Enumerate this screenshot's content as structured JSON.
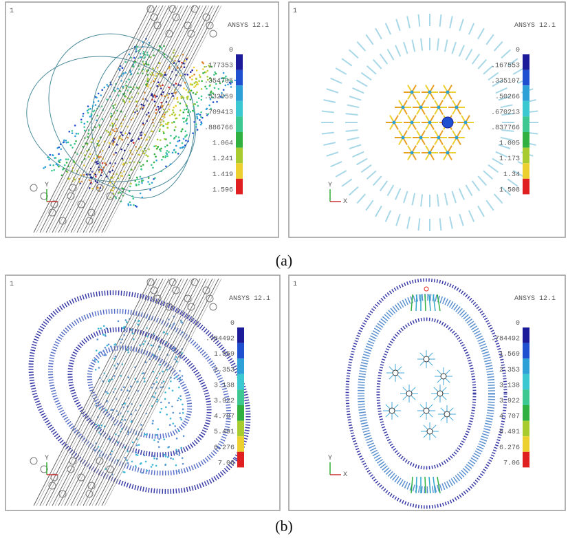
{
  "panels": [
    {
      "number": "1",
      "title": "ANSYS 12.1",
      "legend": [
        "0",
        ".177353",
        ".354706",
        ".532059",
        ".709413",
        ".886766",
        "1.064",
        "1.241",
        "1.419",
        "1.596"
      ],
      "axes": [
        "Y"
      ]
    },
    {
      "number": "1",
      "title": "ANSYS 12.1",
      "legend": [
        "0",
        ".167553",
        ".335107",
        ".50266",
        ".670213",
        ".837766",
        "1.005",
        "1.173",
        "1.34",
        "1.508"
      ],
      "axes": [
        "Y",
        "X"
      ]
    },
    {
      "number": "1",
      "title": "ANSYS 12.1",
      "legend": [
        "0",
        ".784492",
        "1.569",
        "2.353",
        "3.138",
        "3.922",
        "4.707",
        "5.491",
        "6.276",
        "7.06"
      ],
      "axes": [
        "Y"
      ]
    },
    {
      "number": "1",
      "title": "ANSYS 12.1",
      "legend": [
        "0",
        ".784492",
        "1.569",
        "2.353",
        "3.138",
        "3.922",
        "4.707",
        "5.491",
        "6.276",
        "7.06"
      ],
      "axes": [
        "Y",
        "X"
      ]
    }
  ],
  "captions": [
    "(a)",
    "(b)"
  ]
}
